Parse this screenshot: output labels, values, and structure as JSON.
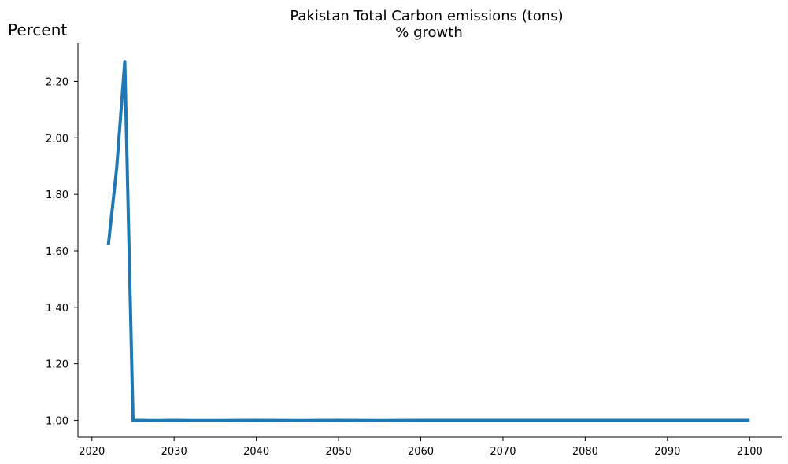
{
  "chart_data": {
    "type": "line",
    "title": "Pakistan Total Carbon emissions (tons)",
    "subtitle": "% growth",
    "ylabel": "Percent",
    "xlabel": "",
    "grid": false,
    "legend": "none",
    "xlim": [
      2018.3,
      2103.9
    ],
    "ylim": [
      0.94,
      2.335
    ],
    "x_ticks": [
      2020,
      2030,
      2040,
      2050,
      2060,
      2070,
      2080,
      2090,
      2100
    ],
    "y_ticks": [
      1.0,
      1.2,
      1.4,
      1.6,
      1.8,
      2.0,
      2.2
    ],
    "y_tick_labels": [
      "1.00",
      "1.20",
      "1.40",
      "1.60",
      "1.80",
      "2.00",
      "2.20"
    ],
    "series": [
      {
        "color": "#1f77b4",
        "x": [
          2022,
          2023,
          2024,
          2025,
          2026,
          2027,
          2028,
          2030,
          2032,
          2035,
          2040,
          2045,
          2050,
          2055,
          2060,
          2070,
          2080,
          2090,
          2100
        ],
        "y": [
          1.62,
          1.89,
          2.27,
          1.0,
          1.0,
          0.999,
          0.999,
          1.0,
          0.999,
          0.999,
          1.0,
          0.999,
          1.0,
          0.999,
          1.0,
          1.0,
          1.0,
          1.0,
          1.0
        ]
      }
    ]
  }
}
